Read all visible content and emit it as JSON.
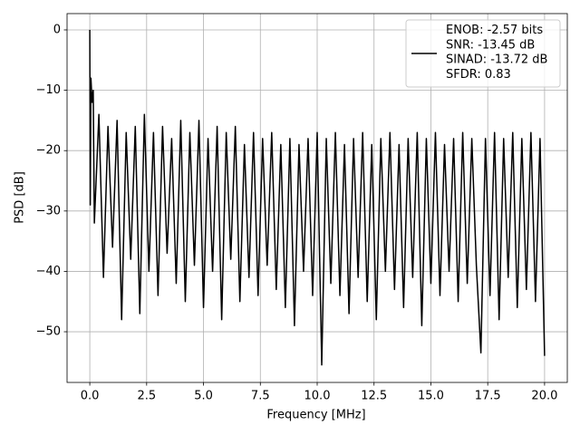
{
  "chart_data": {
    "type": "line",
    "x_label": "Frequency [MHz]",
    "y_label": "PSD [dB]",
    "xlim": [
      -1,
      21
    ],
    "ylim": [
      -58.4,
      2.7
    ],
    "xticks": [
      {
        "value": 0,
        "label": "0.0"
      },
      2.5,
      {
        "value": 5,
        "label": "5.0"
      },
      7.5,
      {
        "value": 10,
        "label": "10.0"
      },
      12.5,
      {
        "value": 15,
        "label": "15.0"
      },
      17.5,
      {
        "value": 20,
        "label": "20.0"
      }
    ],
    "yticks": [
      {
        "value": 0,
        "label": "0"
      },
      {
        "value": -10,
        "label": "−10"
      },
      {
        "value": -20,
        "label": "−20"
      },
      {
        "value": -30,
        "label": "−30"
      },
      {
        "value": -40,
        "label": "−40"
      },
      {
        "value": -50,
        "label": "−50"
      }
    ],
    "grid": true,
    "legend": "upper right",
    "x": [
      0,
      0.02,
      0.05,
      0.1,
      0.15,
      0.2,
      0.4,
      0.6,
      0.8,
      1.0,
      1.2,
      1.4,
      1.6,
      1.8,
      2.0,
      2.2,
      2.4,
      2.6,
      2.8,
      3.0,
      3.2,
      3.4,
      3.6,
      3.8,
      4.0,
      4.2,
      4.4,
      4.6,
      4.8,
      5.0,
      5.2,
      5.4,
      5.6,
      5.8,
      6.0,
      6.2,
      6.4,
      6.6,
      6.8,
      7.0,
      7.2,
      7.4,
      7.6,
      7.8,
      8.0,
      8.2,
      8.4,
      8.6,
      8.8,
      9.0,
      9.2,
      9.4,
      9.6,
      9.8,
      10.0,
      10.2,
      10.4,
      10.6,
      10.8,
      11.0,
      11.2,
      11.4,
      11.6,
      11.8,
      12.0,
      12.2,
      12.4,
      12.6,
      12.8,
      13.0,
      13.2,
      13.4,
      13.6,
      13.8,
      14.0,
      14.2,
      14.4,
      14.6,
      14.8,
      15.0,
      15.2,
      15.4,
      15.6,
      15.8,
      16.0,
      16.2,
      16.4,
      16.6,
      16.8,
      17.0,
      17.2,
      17.4,
      17.6,
      17.8,
      18.0,
      18.2,
      18.4,
      18.6,
      18.8,
      19.0,
      19.2,
      19.4,
      19.6,
      19.8,
      20.0
    ],
    "series": [
      {
        "name": "ENOB: -2.57 bits\nSNR: -13.45 dB\nSINAD: -13.72 dB\nSFDR: 0.83",
        "color": "#000000",
        "values": [
          0,
          -29,
          -8,
          -12,
          -10,
          -32,
          -14,
          -41,
          -16,
          -36,
          -15,
          -48,
          -17,
          -38,
          -16,
          -47,
          -14,
          -40,
          -17,
          -44,
          -16,
          -37,
          -18,
          -42,
          -15,
          -45,
          -17,
          -39,
          -15,
          -46,
          -18,
          -40,
          -16,
          -48,
          -17,
          -38,
          -16,
          -45,
          -19,
          -41,
          -17,
          -44,
          -18,
          -39,
          -17,
          -43,
          -19,
          -46,
          -18,
          -49,
          -19,
          -40,
          -18,
          -44,
          -17,
          -55.5,
          -18,
          -42,
          -17,
          -44,
          -19,
          -47,
          -18,
          -41,
          -17,
          -45,
          -19,
          -48,
          -18,
          -40,
          -17,
          -43,
          -19,
          -46,
          -18,
          -41,
          -17,
          -49,
          -18,
          -42,
          -17,
          -44,
          -19,
          -40,
          -18,
          -45,
          -17,
          -42,
          -18,
          -39,
          -53.5,
          -18,
          -44,
          -17,
          -48,
          -18,
          -41,
          -17,
          -46,
          -18,
          -43,
          -17,
          -45,
          -18,
          -54
        ]
      }
    ]
  }
}
